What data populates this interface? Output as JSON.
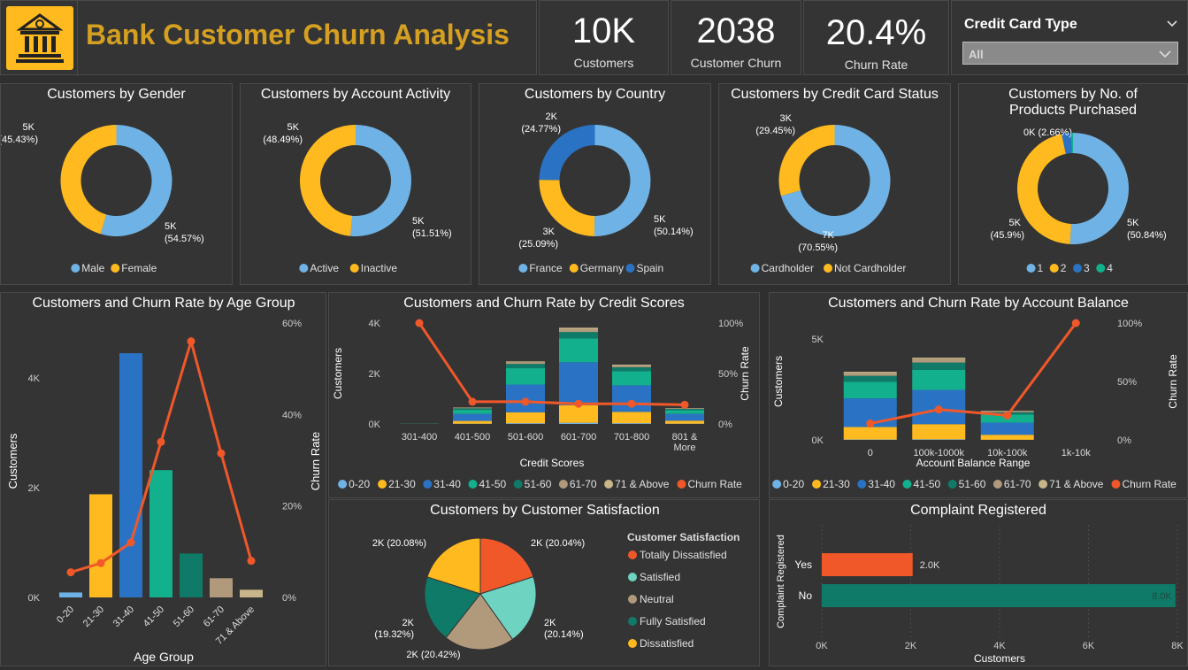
{
  "header": {
    "title": "Bank Customer Churn Analysis",
    "logo_icon": "bank-icon"
  },
  "kpis": [
    {
      "value": "10K",
      "label": "Customers"
    },
    {
      "value": "2038",
      "label": "Customer Churn"
    },
    {
      "value": "20.4%",
      "label": "Churn Rate"
    }
  ],
  "slicer": {
    "label": "Credit Card Type",
    "value": "All"
  },
  "colors": {
    "light_blue": "#6fb3e6",
    "yellow": "#ffba1f",
    "blue": "#2a73c4",
    "teal": "#12b08c",
    "dark_teal": "#107a68",
    "tan": "#b19a7c",
    "beige": "#c8b68a",
    "orange": "#f0582a",
    "title": "#d5a021"
  },
  "chart_data": [
    {
      "type": "donut",
      "title": "Customers by Gender",
      "slices": [
        {
          "name": "Male",
          "value": 5457,
          "label": "5K",
          "pct": "(54.57%)"
        },
        {
          "name": "Female",
          "value": 4543,
          "label": "5K",
          "pct": "(45.43%)"
        }
      ],
      "legend": [
        "Male",
        "Female"
      ]
    },
    {
      "type": "donut",
      "title": "Customers by Account Activity",
      "slices": [
        {
          "name": "Active",
          "value": 5151,
          "label": "5K",
          "pct": "(51.51%)"
        },
        {
          "name": "Inactive",
          "value": 4849,
          "label": "5K",
          "pct": "(48.49%)"
        }
      ],
      "legend": [
        "Active",
        "Inactive"
      ]
    },
    {
      "type": "donut",
      "title": "Customers by Country",
      "slices": [
        {
          "name": "France",
          "value": 5014,
          "label": "5K",
          "pct": "(50.14%)"
        },
        {
          "name": "Germany",
          "value": 2509,
          "label": "3K",
          "pct": "(25.09%)"
        },
        {
          "name": "Spain",
          "value": 2477,
          "label": "2K",
          "pct": "(24.77%)"
        }
      ],
      "legend": [
        "France",
        "Germany",
        "Spain"
      ]
    },
    {
      "type": "donut",
      "title": "Customers by Credit Card Status",
      "slices": [
        {
          "name": "Cardholder",
          "value": 7055,
          "label": "7K",
          "pct": "(70.55%)"
        },
        {
          "name": "Not Cardholder",
          "value": 2945,
          "label": "3K",
          "pct": "(29.45%)"
        }
      ],
      "legend": [
        "Cardholder",
        "Not Cardholder"
      ]
    },
    {
      "type": "donut",
      "title": "Customers by No. of Products Purchased",
      "slices": [
        {
          "name": "1",
          "value": 5084,
          "label": "5K",
          "pct": "(50.84%)"
        },
        {
          "name": "2",
          "value": 4590,
          "label": "5K",
          "pct": "(45.9%)"
        },
        {
          "name": "3",
          "value": 266,
          "label": "0K",
          "pct": "(2.66%)"
        },
        {
          "name": "4",
          "value": 60,
          "label": "",
          "pct": ""
        }
      ],
      "legend": [
        "1",
        "2",
        "3",
        "4"
      ]
    },
    {
      "type": "bar+line",
      "title": "Customers and Churn Rate by Age Group",
      "categories": [
        "0-20",
        "21-30",
        "31-40",
        "41-50",
        "51-60",
        "61-70",
        "71 & Above"
      ],
      "values": [
        90,
        1880,
        4450,
        2320,
        800,
        350,
        140
      ],
      "churn_rate": [
        0.055,
        0.075,
        0.12,
        0.34,
        0.56,
        0.315,
        0.08
      ],
      "xlabel": "Age Group",
      "ylabel": "Customers",
      "y2label": "Churn Rate",
      "yticks": [
        "0K",
        "2K",
        "4K"
      ],
      "y2ticks": [
        "0%",
        "20%",
        "40%",
        "60%"
      ],
      "ylim": [
        0,
        5000
      ],
      "y2lim": [
        0,
        0.6
      ]
    },
    {
      "type": "stacked bar+line",
      "title": "Customers and Churn Rate by Credit Scores",
      "categories": [
        "301-400",
        "401-500",
        "501-600",
        "601-700",
        "701-800",
        "801 & More"
      ],
      "series": [
        {
          "name": "0-20",
          "values": [
            0,
            10,
            30,
            45,
            30,
            10
          ]
        },
        {
          "name": "21-30",
          "values": [
            2,
            110,
            430,
            700,
            450,
            120
          ]
        },
        {
          "name": "31-40",
          "values": [
            5,
            280,
            1100,
            1700,
            1050,
            270
          ]
        },
        {
          "name": "41-50",
          "values": [
            4,
            160,
            650,
            950,
            560,
            150
          ]
        },
        {
          "name": "51-60",
          "values": [
            2,
            60,
            170,
            250,
            160,
            50
          ]
        },
        {
          "name": "61-70",
          "values": [
            1,
            25,
            70,
            110,
            65,
            20
          ]
        },
        {
          "name": "71 & Above",
          "values": [
            0,
            10,
            30,
            60,
            35,
            10
          ]
        }
      ],
      "churn_rate": [
        1.0,
        0.22,
        0.22,
        0.2,
        0.2,
        0.19
      ],
      "xlabel": "Credit Scores",
      "ylabel": "Customers",
      "y2label": "Churn Rate",
      "yticks": [
        "0K",
        "2K",
        "4K"
      ],
      "y2ticks": [
        "0%",
        "50%",
        "100%"
      ],
      "ylim": [
        0,
        4000
      ],
      "y2lim": [
        0,
        1
      ],
      "legend": [
        "0-20",
        "21-30",
        "31-40",
        "41-50",
        "51-60",
        "61-70",
        "71 & Above",
        "Churn Rate"
      ]
    },
    {
      "type": "stacked bar+line",
      "title": "Customers and Churn Rate by Account Balance",
      "categories": [
        "0",
        "100k-1000k",
        "10k-100k",
        "1k-10k"
      ],
      "series": [
        {
          "name": "0-20",
          "values": [
            20,
            30,
            5,
            0
          ]
        },
        {
          "name": "21-30",
          "values": [
            620,
            750,
            250,
            0
          ]
        },
        {
          "name": "31-40",
          "values": [
            1420,
            1700,
            600,
            0
          ]
        },
        {
          "name": "41-50",
          "values": [
            820,
            1000,
            400,
            0
          ]
        },
        {
          "name": "51-60",
          "values": [
            300,
            360,
            120,
            0
          ]
        },
        {
          "name": "61-70",
          "values": [
            140,
            170,
            50,
            0
          ]
        },
        {
          "name": "71 & Above",
          "values": [
            60,
            70,
            20,
            0
          ]
        }
      ],
      "churn_rate": [
        0.14,
        0.26,
        0.21,
        1.0
      ],
      "xlabel": "Account Balance Range",
      "ylabel": "Customers",
      "y2label": "Churn Rate",
      "yticks": [
        "0K",
        "5K"
      ],
      "y2ticks": [
        "0%",
        "50%",
        "100%"
      ],
      "ylim": [
        0,
        5800
      ],
      "y2lim": [
        0,
        1
      ],
      "legend": [
        "0-20",
        "21-30",
        "31-40",
        "41-50",
        "51-60",
        "61-70",
        "71 & Above",
        "Churn Rate"
      ]
    },
    {
      "type": "pie",
      "title": "Customers by Customer Satisfaction",
      "legend_title": "Customer Satisfaction",
      "slices": [
        {
          "name": "Totally Dissatisfied",
          "value": 2004,
          "label": "2K (20.04%)"
        },
        {
          "name": "Satisfied",
          "value": 2014,
          "label": "2K\n(20.14%)"
        },
        {
          "name": "Neutral",
          "value": 2042,
          "label": "2K (20.42%)"
        },
        {
          "name": "Fully Satisfied",
          "value": 1932,
          "label": "2K\n(19.32%)"
        },
        {
          "name": "Dissatisfied",
          "value": 2008,
          "label": "2K (20.08%)"
        }
      ],
      "legend": [
        "Totally Dissatisfied",
        "Satisfied",
        "Neutral",
        "Fully Satisfied",
        "Dissatisfied"
      ]
    },
    {
      "type": "bar",
      "title": "Complaint Registered",
      "categories": [
        "Yes",
        "No"
      ],
      "values": [
        2044,
        7956
      ],
      "value_labels": [
        "2.0K",
        "8.0K"
      ],
      "xlabel": "Customers",
      "ylabel": "Complaint Registered",
      "xticks": [
        "0K",
        "2K",
        "4K",
        "6K",
        "8K"
      ],
      "xlim": [
        0,
        8000
      ]
    }
  ]
}
